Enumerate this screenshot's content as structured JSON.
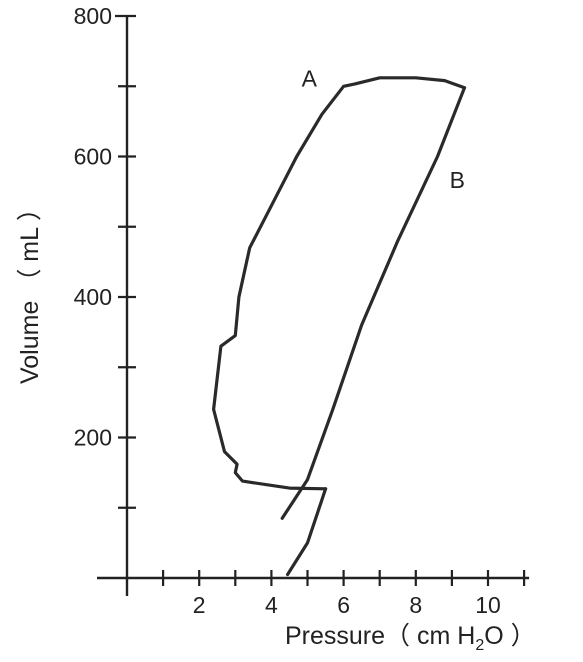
{
  "chart_data": {
    "type": "line",
    "xlabel": "Pressure（ cm H",
    "xlabel_subscript": "2",
    "xlabel_suffix": "O ）",
    "ylabel": "Volume （ mL ）",
    "xlim": [
      0,
      11
    ],
    "ylim": [
      0,
      800
    ],
    "x_ticks": [
      1,
      2,
      3,
      4,
      5,
      6,
      7,
      8,
      9,
      10,
      11
    ],
    "x_tick_labels": [
      {
        "value": 2,
        "label": "2"
      },
      {
        "value": 4,
        "label": "4"
      },
      {
        "value": 6,
        "label": "6"
      },
      {
        "value": 8,
        "label": "8"
      },
      {
        "value": 10,
        "label": "10"
      }
    ],
    "y_ticks": [
      100,
      200,
      300,
      400,
      500,
      600,
      700,
      800
    ],
    "y_tick_labels": [
      {
        "value": 200,
        "label": "200"
      },
      {
        "value": 400,
        "label": "400"
      },
      {
        "value": 600,
        "label": "600"
      },
      {
        "value": 800,
        "label": "800"
      }
    ],
    "grid": false,
    "series": [
      {
        "name": "A",
        "label_at": {
          "x": 5.05,
          "y": 700
        },
        "points": [
          {
            "x": 5.5,
            "y": 127
          },
          {
            "x": 4.5,
            "y": 128
          },
          {
            "x": 3.2,
            "y": 138
          },
          {
            "x": 3.0,
            "y": 150
          },
          {
            "x": 3.05,
            "y": 162
          },
          {
            "x": 2.7,
            "y": 180
          },
          {
            "x": 2.4,
            "y": 240
          },
          {
            "x": 2.6,
            "y": 330
          },
          {
            "x": 3.0,
            "y": 345
          },
          {
            "x": 3.1,
            "y": 400
          },
          {
            "x": 3.4,
            "y": 470
          },
          {
            "x": 4.0,
            "y": 530
          },
          {
            "x": 4.7,
            "y": 600
          },
          {
            "x": 5.4,
            "y": 660
          },
          {
            "x": 6.0,
            "y": 700
          },
          {
            "x": 6.3,
            "y": 703
          },
          {
            "x": 7.0,
            "y": 712
          },
          {
            "x": 8.0,
            "y": 712
          },
          {
            "x": 8.8,
            "y": 708
          },
          {
            "x": 9.35,
            "y": 698
          }
        ]
      },
      {
        "name": "B",
        "label_at": {
          "x": 9.15,
          "y": 555
        },
        "points": [
          {
            "x": 9.35,
            "y": 698
          },
          {
            "x": 8.6,
            "y": 600
          },
          {
            "x": 7.5,
            "y": 480
          },
          {
            "x": 6.5,
            "y": 360
          },
          {
            "x": 5.7,
            "y": 240
          },
          {
            "x": 5.0,
            "y": 140
          },
          {
            "x": 4.3,
            "y": 85
          }
        ]
      },
      {
        "name": "",
        "points": [
          {
            "x": 5.5,
            "y": 127
          },
          {
            "x": 5.0,
            "y": 50
          },
          {
            "x": 4.45,
            "y": 5
          }
        ]
      }
    ]
  }
}
